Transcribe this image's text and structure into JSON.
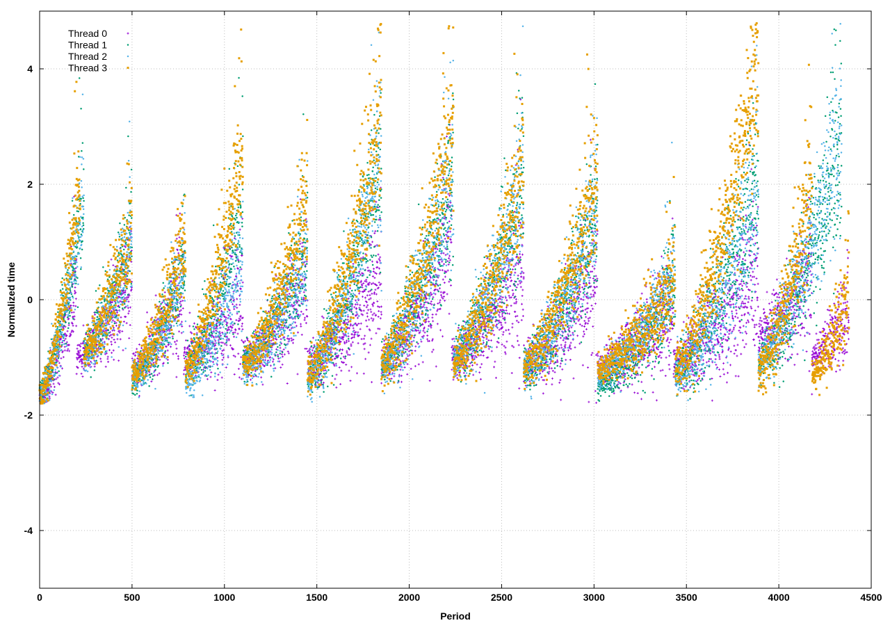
{
  "chart_data": {
    "type": "scatter",
    "xlabel": "Period",
    "ylabel": "Normalized time",
    "xlim": [
      0,
      4500
    ],
    "ylim": [
      -5,
      5
    ],
    "x_ticks": [
      0,
      500,
      1000,
      1500,
      2000,
      2500,
      3000,
      3500,
      4000,
      4500
    ],
    "y_ticks": [
      -4,
      -2,
      0,
      2,
      4
    ],
    "grid": true,
    "legend_position": "top-left",
    "series": [
      {
        "name": "Thread 0",
        "color": "#9400d3",
        "marker": "plus",
        "cycles": [
          [
            0,
            200,
            -1.75,
            0.3,
            0.35
          ],
          [
            200,
            500,
            -1.0,
            0.4,
            0.4
          ],
          [
            500,
            780,
            -1.2,
            0.2,
            0.45
          ],
          [
            780,
            1100,
            -1.0,
            0.0,
            0.5
          ],
          [
            1100,
            1450,
            -1.0,
            0.3,
            0.45
          ],
          [
            1450,
            1850,
            -1.1,
            0.4,
            0.45
          ],
          [
            1850,
            2230,
            -1.1,
            0.9,
            0.5
          ],
          [
            2230,
            2620,
            -1.0,
            0.6,
            0.55
          ],
          [
            2620,
            3020,
            -1.1,
            0.5,
            0.55
          ],
          [
            3020,
            3430,
            -1.2,
            -0.1,
            0.45
          ],
          [
            3430,
            3890,
            -1.1,
            0.6,
            0.6
          ],
          [
            3890,
            4180,
            -0.6,
            0.4,
            0.5
          ],
          [
            4180,
            4380,
            -1.0,
            -0.2,
            0.35
          ]
        ]
      },
      {
        "name": "Thread 1",
        "color": "#009e73",
        "marker": "dot",
        "cycles": [
          [
            0,
            240,
            -1.65,
            1.6,
            0.4
          ],
          [
            240,
            500,
            -0.9,
            1.0,
            0.45
          ],
          [
            500,
            790,
            -1.4,
            0.6,
            0.35
          ],
          [
            790,
            1100,
            -1.2,
            1.4,
            0.55
          ],
          [
            1100,
            1450,
            -1.1,
            0.8,
            0.45
          ],
          [
            1450,
            1850,
            -1.3,
            2.2,
            0.55
          ],
          [
            1850,
            2240,
            -1.1,
            2.0,
            0.55
          ],
          [
            2240,
            2620,
            -1.0,
            1.8,
            0.55
          ],
          [
            2620,
            3020,
            -1.2,
            1.4,
            0.5
          ],
          [
            3020,
            3440,
            -1.5,
            0.2,
            0.35
          ],
          [
            3440,
            3890,
            -1.3,
            2.0,
            0.6
          ],
          [
            3890,
            4340,
            -1.1,
            2.6,
            0.6
          ]
        ]
      },
      {
        "name": "Thread 2",
        "color": "#56b4e9",
        "marker": "dot",
        "cycles": [
          [
            0,
            240,
            -1.7,
            1.7,
            0.4
          ],
          [
            240,
            500,
            -1.0,
            1.1,
            0.45
          ],
          [
            500,
            790,
            -1.4,
            0.5,
            0.35
          ],
          [
            790,
            1100,
            -1.4,
            0.7,
            0.45
          ],
          [
            1100,
            1450,
            -1.2,
            0.7,
            0.4
          ],
          [
            1450,
            1850,
            -1.4,
            2.4,
            0.55
          ],
          [
            1850,
            2240,
            -1.2,
            2.1,
            0.55
          ],
          [
            2240,
            2620,
            -1.0,
            2.0,
            0.55
          ],
          [
            2620,
            3020,
            -1.2,
            1.5,
            0.5
          ],
          [
            3020,
            3440,
            -1.3,
            0.4,
            0.35
          ],
          [
            3440,
            3890,
            -1.3,
            1.8,
            0.6
          ],
          [
            3890,
            4340,
            -1.1,
            2.8,
            0.6
          ]
        ]
      },
      {
        "name": "Thread 3",
        "color": "#e69f00",
        "marker": "square",
        "cycles": [
          [
            0,
            220,
            -1.7,
            1.9,
            0.35
          ],
          [
            240,
            500,
            -0.9,
            1.2,
            0.45
          ],
          [
            500,
            790,
            -1.3,
            1.0,
            0.4
          ],
          [
            790,
            1100,
            -1.2,
            2.5,
            0.5
          ],
          [
            1100,
            1450,
            -1.1,
            1.5,
            0.45
          ],
          [
            1450,
            1850,
            -1.3,
            3.0,
            0.55
          ],
          [
            1850,
            2240,
            -1.1,
            2.8,
            0.55
          ],
          [
            2240,
            2620,
            -1.1,
            2.2,
            0.55
          ],
          [
            2620,
            3020,
            -1.2,
            2.1,
            0.5
          ],
          [
            3020,
            3440,
            -1.2,
            0.3,
            0.35
          ],
          [
            3440,
            3890,
            -1.2,
            3.8,
            0.6
          ],
          [
            3890,
            4180,
            -1.3,
            2.0,
            0.55
          ],
          [
            4180,
            4380,
            -1.3,
            0.0,
            0.4
          ]
        ]
      }
    ]
  }
}
